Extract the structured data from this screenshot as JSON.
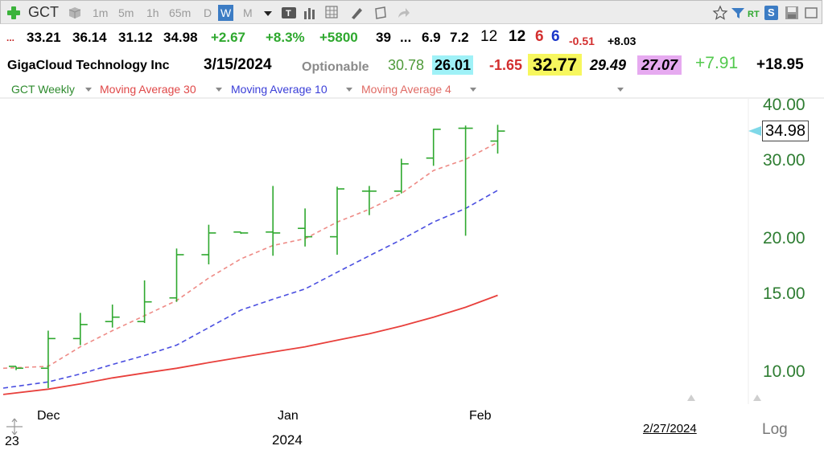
{
  "toolbar": {
    "symbol": "GCT",
    "timeframes": [
      "1m",
      "5m",
      "1h",
      "65m",
      "D",
      "W",
      "M"
    ],
    "active_timeframe": "W",
    "rt_label": "RT",
    "s_label": "S"
  },
  "quote_line1": {
    "ellipsis": "...",
    "open": "33.21",
    "high": "36.14",
    "low": "31.12",
    "close": "34.98",
    "change": "+2.67",
    "change_pct": "+8.3%",
    "volume_change": "+5800",
    "v1": "39",
    "v2": "...",
    "v3": "6.9",
    "v4": "7.2",
    "v5": "12",
    "v6": "12",
    "v7": "6",
    "v8": "6",
    "v9": "-0.51",
    "v10": "+8.03"
  },
  "quote_line2": {
    "company": "GigaCloud Technology Inc",
    "date": "3/15/2024",
    "optionable": "Optionable",
    "f1": "30.78",
    "f2": "26.01",
    "f3": "-1.65",
    "f4": "32.77",
    "f5": "29.49",
    "f6": "27.07",
    "f7": "+7.91",
    "f8": "+18.95"
  },
  "legend": {
    "series": "GCT Weekly",
    "ma30": "Moving Average 30",
    "ma10": "Moving Average 10",
    "ma4": "Moving Average 4"
  },
  "colors": {
    "bars": "#2ea82e",
    "ma30": "#e8403c",
    "ma10": "#4a4ee0",
    "ma4": "#ee8a85",
    "last_price_marker": "#7fd8e8",
    "highlight_cyan": "#9ff1f7",
    "highlight_yellow": "#f7f75e",
    "highlight_violet": "#e6aaf0"
  },
  "chart_data": {
    "type": "line",
    "y_scale": "log",
    "ylim": [
      8.8,
      44
    ],
    "y_ticks": [
      "40.00",
      "30.00",
      "20.00",
      "15.00",
      "10.00"
    ],
    "y_tick_values": [
      40,
      30,
      20,
      15,
      10
    ],
    "x_tick_labels": [
      "Dec",
      "Jan",
      "Feb"
    ],
    "x_sub_labels": [
      "23",
      "2024"
    ],
    "x_cursor_label": "2/27/2024",
    "last_price_label": "34.98",
    "last_price": 34.98,
    "scale_mode_label": "Log",
    "bars": [
      {
        "open": 10.3,
        "high": 10.3,
        "low": 10.1,
        "close": 10.2
      },
      {
        "open": 10.2,
        "high": 12.4,
        "low": 9.2,
        "close": 11.9
      },
      {
        "open": 11.9,
        "high": 13.6,
        "low": 11.5,
        "close": 12.8
      },
      {
        "open": 13.0,
        "high": 14.2,
        "low": 12.6,
        "close": 13.3
      },
      {
        "open": 13.0,
        "high": 16.1,
        "low": 12.9,
        "close": 14.4
      },
      {
        "open": 14.7,
        "high": 19.0,
        "low": 14.4,
        "close": 18.4
      },
      {
        "open": 18.4,
        "high": 21.5,
        "low": 17.5,
        "close": 20.6
      },
      {
        "open": 20.7,
        "high": 20.7,
        "low": 20.5,
        "close": 20.6
      },
      {
        "open": 20.7,
        "high": 26.3,
        "low": 18.3,
        "close": 20.6
      },
      {
        "open": 21.1,
        "high": 23.4,
        "low": 19.2,
        "close": 20.2
      },
      {
        "open": 20.2,
        "high": 26.2,
        "low": 18.4,
        "close": 25.9
      },
      {
        "open": 25.6,
        "high": 26.3,
        "low": 22.6,
        "close": 25.6
      },
      {
        "open": 25.6,
        "high": 30.3,
        "low": 25.3,
        "close": 29.5
      },
      {
        "open": 30.4,
        "high": 35.4,
        "low": 29.2,
        "close": 35.3
      },
      {
        "open": 35.5,
        "high": 36.0,
        "low": 20.3,
        "close": 35.5
      },
      {
        "open": 33.21,
        "high": 36.14,
        "low": 31.12,
        "close": 34.98
      }
    ],
    "series": [
      {
        "values": [
          10.2,
          10.3,
          11.4,
          12.4,
          13.4,
          14.5,
          16.3,
          18.0,
          19.3,
          20.0,
          21.8,
          23.3,
          25.3,
          28.5,
          30.2,
          33.0
        ]
      },
      {
        "values": [
          9.2,
          9.5,
          9.9,
          10.4,
          10.9,
          11.5,
          12.6,
          13.8,
          14.6,
          15.4,
          16.8,
          18.3,
          19.9,
          21.8,
          23.4,
          25.7
        ]
      },
      {
        "values": [
          8.9,
          9.15,
          9.4,
          9.7,
          9.95,
          10.2,
          10.5,
          10.8,
          11.1,
          11.4,
          11.8,
          12.2,
          12.7,
          13.3,
          14.0,
          14.9
        ]
      }
    ]
  }
}
